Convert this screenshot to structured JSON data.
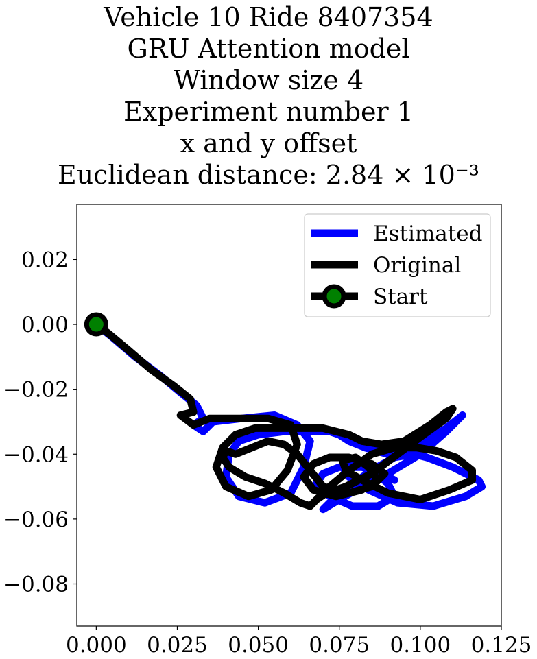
{
  "chart_data": {
    "type": "line",
    "title_lines": [
      "Vehicle 10 Ride 8407354",
      "GRU Attention model",
      "Window size 4",
      "Experiment number 1",
      "x and y offset",
      "Euclidean distance: 2.84 × 10⁻³"
    ],
    "xlabel": "",
    "ylabel": "",
    "xlim": [
      -0.006,
      0.125
    ],
    "ylim": [
      -0.093,
      0.037
    ],
    "xticks": [
      "0.000",
      "0.025",
      "0.050",
      "0.075",
      "0.100",
      "0.125"
    ],
    "xtick_values": [
      0.0,
      0.025,
      0.05,
      0.075,
      0.1,
      0.125
    ],
    "yticks": [
      "0.02",
      "0.00",
      "−0.02",
      "−0.04",
      "−0.06",
      "−0.08"
    ],
    "ytick_values": [
      0.02,
      0.0,
      -0.02,
      -0.04,
      -0.06,
      -0.08
    ],
    "grid": false,
    "legend_position": "top-right",
    "series": [
      {
        "name": "Estimated",
        "color": "#0000ff",
        "x": [
          0.0,
          0.005,
          0.012,
          0.02,
          0.026,
          0.031,
          0.033,
          0.03,
          0.033,
          0.036,
          0.045,
          0.055,
          0.062,
          0.066,
          0.064,
          0.06,
          0.052,
          0.044,
          0.04,
          0.041,
          0.044,
          0.05,
          0.058,
          0.064,
          0.068,
          0.072,
          0.075,
          0.078,
          0.083,
          0.09,
          0.1,
          0.108,
          0.113,
          0.113,
          0.108,
          0.1,
          0.09,
          0.082,
          0.075,
          0.07,
          0.072,
          0.078,
          0.085,
          0.092,
          0.098,
          0.102,
          0.11,
          0.118,
          0.119,
          0.114,
          0.104,
          0.093,
          0.084,
          0.078,
          0.076,
          0.08,
          0.085,
          0.09,
          0.092,
          0.087,
          0.079,
          0.072,
          0.068,
          0.07,
          0.075,
          0.082,
          0.088,
          0.092
        ],
        "y": [
          0.0,
          -0.004,
          -0.01,
          -0.016,
          -0.021,
          -0.025,
          -0.029,
          -0.031,
          -0.033,
          -0.03,
          -0.029,
          -0.028,
          -0.031,
          -0.036,
          -0.044,
          -0.052,
          -0.055,
          -0.053,
          -0.047,
          -0.04,
          -0.036,
          -0.034,
          -0.033,
          -0.033,
          -0.033,
          -0.033,
          -0.034,
          -0.036,
          -0.038,
          -0.04,
          -0.037,
          -0.032,
          -0.028,
          -0.028,
          -0.033,
          -0.04,
          -0.046,
          -0.05,
          -0.054,
          -0.057,
          -0.055,
          -0.05,
          -0.045,
          -0.041,
          -0.04,
          -0.041,
          -0.044,
          -0.048,
          -0.05,
          -0.053,
          -0.056,
          -0.055,
          -0.051,
          -0.047,
          -0.044,
          -0.043,
          -0.045,
          -0.049,
          -0.053,
          -0.056,
          -0.056,
          -0.053,
          -0.049,
          -0.046,
          -0.044,
          -0.044,
          -0.046,
          -0.048
        ]
      },
      {
        "name": "Original",
        "color": "#000000",
        "x": [
          0.0,
          0.004,
          0.01,
          0.017,
          0.024,
          0.029,
          0.03,
          0.026,
          0.03,
          0.035,
          0.044,
          0.053,
          0.06,
          0.062,
          0.059,
          0.054,
          0.047,
          0.04,
          0.037,
          0.039,
          0.043,
          0.049,
          0.056,
          0.062,
          0.066,
          0.07,
          0.074,
          0.078,
          0.082,
          0.088,
          0.095,
          0.103,
          0.108,
          0.11,
          0.108,
          0.101,
          0.093,
          0.085,
          0.077,
          0.071,
          0.068,
          0.072,
          0.078,
          0.085,
          0.092,
          0.099,
          0.105,
          0.111,
          0.116,
          0.116,
          0.109,
          0.1,
          0.09,
          0.082,
          0.077,
          0.076,
          0.08,
          0.084,
          0.087,
          0.082,
          0.074,
          0.067,
          0.064,
          0.067,
          0.072,
          0.078,
          0.085,
          0.089,
          0.085,
          0.078,
          0.07,
          0.066,
          0.062,
          0.058,
          0.053,
          0.048,
          0.043,
          0.04,
          0.039,
          0.041,
          0.046,
          0.052,
          0.058,
          0.063,
          0.066,
          0.07
        ],
        "y": [
          0.0,
          -0.003,
          -0.008,
          -0.014,
          -0.019,
          -0.023,
          -0.027,
          -0.028,
          -0.031,
          -0.029,
          -0.029,
          -0.029,
          -0.031,
          -0.037,
          -0.045,
          -0.051,
          -0.053,
          -0.05,
          -0.044,
          -0.038,
          -0.034,
          -0.032,
          -0.032,
          -0.032,
          -0.032,
          -0.032,
          -0.033,
          -0.034,
          -0.036,
          -0.037,
          -0.036,
          -0.031,
          -0.027,
          -0.026,
          -0.029,
          -0.034,
          -0.04,
          -0.046,
          -0.05,
          -0.052,
          -0.054,
          -0.05,
          -0.045,
          -0.04,
          -0.038,
          -0.038,
          -0.039,
          -0.041,
          -0.045,
          -0.048,
          -0.051,
          -0.054,
          -0.052,
          -0.048,
          -0.045,
          -0.042,
          -0.041,
          -0.044,
          -0.048,
          -0.051,
          -0.053,
          -0.051,
          -0.047,
          -0.043,
          -0.041,
          -0.041,
          -0.043,
          -0.046,
          -0.05,
          -0.052,
          -0.05,
          -0.045,
          -0.04,
          -0.037,
          -0.036,
          -0.038,
          -0.04,
          -0.039,
          -0.041,
          -0.044,
          -0.047,
          -0.049,
          -0.052,
          -0.055,
          -0.056,
          -0.052
        ]
      }
    ],
    "start_marker": {
      "name": "Start",
      "x": 0.0,
      "y": 0.0,
      "edge_color": "#000000",
      "face_color": "#008000"
    }
  }
}
